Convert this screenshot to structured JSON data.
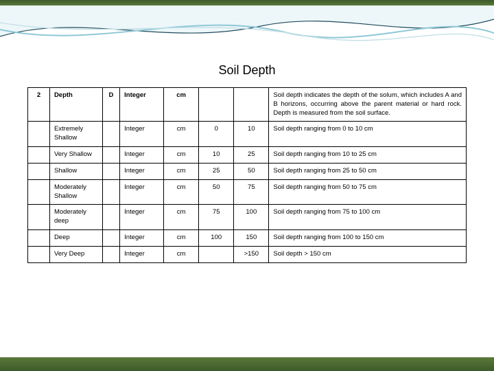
{
  "title": "Soil Depth",
  "colors": {
    "border": "#000000",
    "text": "#000000",
    "top_strip_from": "#3d5a2a",
    "top_strip_to": "#5a7a3a",
    "bottom_strip_from": "#5a7a3a",
    "bottom_strip_to": "#3d5a2a",
    "bg": "#ffffff",
    "wave_stroke_dark": "#1f4a5a",
    "wave_stroke_light": "#8fc7d6",
    "wave_fill": "rgba(220,240,245,0.5)"
  },
  "typography": {
    "title_fontsize": 18,
    "cell_fontsize": 9.5,
    "font_family": "Arial, sans-serif"
  },
  "table": {
    "col_widths_pct": [
      5,
      12,
      4,
      10,
      8,
      8,
      8,
      45
    ],
    "header": {
      "index": "2",
      "name": "Depth",
      "code": "D",
      "type": "Integer",
      "unit": "cm",
      "min": "",
      "max": "",
      "desc": "Soil depth indicates the depth of the solum, which includes A and B horizons, occurring above the parent material or hard rock. Depth is measured from the soil surface."
    },
    "rows": [
      {
        "name": "Extremely Shallow",
        "type": "Integer",
        "unit": "cm",
        "min": "0",
        "max": "10",
        "desc": "Soil depth ranging from 0 to 10 cm"
      },
      {
        "name": "Very Shallow",
        "type": "Integer",
        "unit": "cm",
        "min": "10",
        "max": "25",
        "desc": "Soil depth ranging from 10 to 25 cm"
      },
      {
        "name": "Shallow",
        "type": "Integer",
        "unit": "cm",
        "min": "25",
        "max": "50",
        "desc": "Soil depth ranging from 25 to 50 cm"
      },
      {
        "name": "Moderately Shallow",
        "type": "Integer",
        "unit": "cm",
        "min": "50",
        "max": "75",
        "desc": "Soil depth ranging from 50 to 75 cm"
      },
      {
        "name": "Moderately deep",
        "type": "Integer",
        "unit": "cm",
        "min": "75",
        "max": "100",
        "desc": "Soil depth ranging from 75 to 100 cm"
      },
      {
        "name": "Deep",
        "type": "Integer",
        "unit": "cm",
        "min": "100",
        "max": "150",
        "desc": "Soil depth ranging from 100 to 150 cm"
      },
      {
        "name": "Very Deep",
        "type": "Integer",
        "unit": "cm",
        "min": "",
        "max": ">150",
        "desc": "Soil depth > 150 cm"
      }
    ]
  }
}
